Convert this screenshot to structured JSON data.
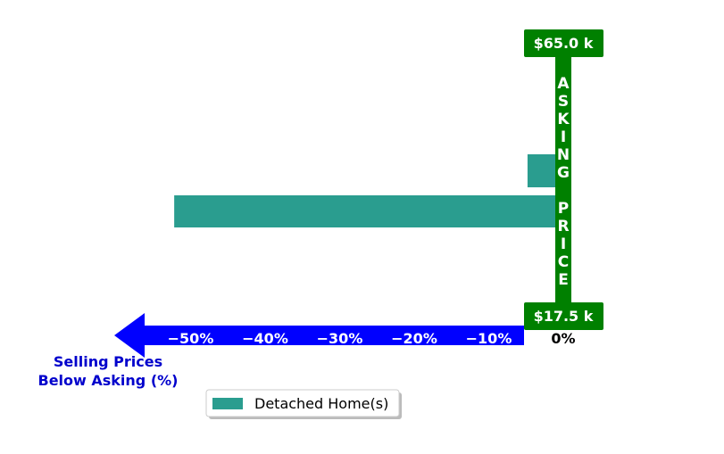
{
  "chart_data": {
    "type": "bar",
    "orientation": "horizontal",
    "series": [
      {
        "name": "Detached Home(s)",
        "values": [
          -4.8,
          -52.2
        ]
      }
    ],
    "xlim": [
      -60,
      2
    ],
    "x_ticks": [
      "−50%",
      "−40%",
      "−30%",
      "−20%",
      "−10%",
      "0%"
    ],
    "x_tick_values": [
      -50,
      -40,
      -30,
      -20,
      -10,
      0
    ],
    "xlabel": "Selling Prices\nBelow Asking (%)",
    "asking_price": {
      "label": "ASKING PRICE",
      "top_value": "$65.0 k",
      "bottom_value": "$17.5 k"
    },
    "legend_position": "bottom-center",
    "grid": false,
    "colors": {
      "bar": "#2a9d8f",
      "asking": "#008000",
      "arrow": "#0000ff",
      "xlabel": "#0000cc"
    }
  }
}
